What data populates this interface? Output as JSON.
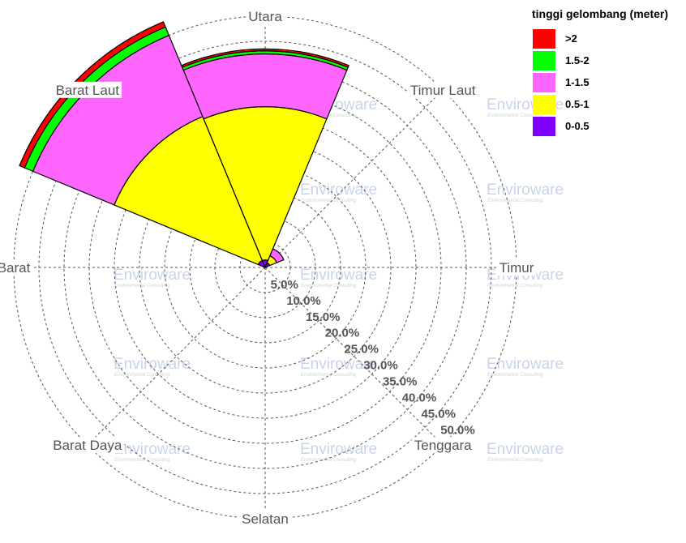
{
  "chart_data": {
    "type": "polar-stacked-bar",
    "title": "",
    "legend_title": "tinggi gelombang (meter)",
    "legend_placement": "top-right",
    "grid": true,
    "radial_max_percent": 50,
    "ring_labels": [
      "5.0%",
      "10.0%",
      "15.0%",
      "20.0%",
      "25.0%",
      "30.0%",
      "35.0%",
      "40.0%",
      "45.0%",
      "50.0%"
    ],
    "directions": [
      {
        "name": "Utara",
        "angle": 0
      },
      {
        "name": "Timur Laut",
        "angle": 45
      },
      {
        "name": "Timur",
        "angle": 90
      },
      {
        "name": "Tenggara",
        "angle": 135
      },
      {
        "name": "Selatan",
        "angle": 180
      },
      {
        "name": "Barat Daya",
        "angle": 225
      },
      {
        "name": "Barat",
        "angle": 270
      },
      {
        "name": "Barat Laut",
        "angle": 315
      }
    ],
    "categories": [
      "0-0.5",
      "0.5-1",
      "1-1.5",
      "1.5-2",
      ">2"
    ],
    "colors": [
      "#7f00ff",
      "#ffff00",
      "#ff66ff",
      "#00ff00",
      "#ff0000"
    ],
    "legend_order": [
      ">2",
      "1.5-2",
      "1-1.5",
      "0.5-1",
      "0-0.5"
    ],
    "sectors": [
      {
        "direction": "Utara",
        "angle": 0,
        "values": [
          1.5,
          30.5,
          10.5,
          0.6,
          0.4
        ]
      },
      {
        "direction": "Timur Laut",
        "angle": 45,
        "values": [
          1.0,
          1.5,
          1.5,
          0,
          0
        ]
      },
      {
        "direction": "Barat Laut",
        "angle": 315,
        "values": [
          1.5,
          31.0,
          17.5,
          1.8,
          1.1
        ]
      }
    ],
    "sector_width_deg": 45
  },
  "watermark": {
    "text": "Enviroware",
    "subtext": "Environmental Consulting"
  }
}
